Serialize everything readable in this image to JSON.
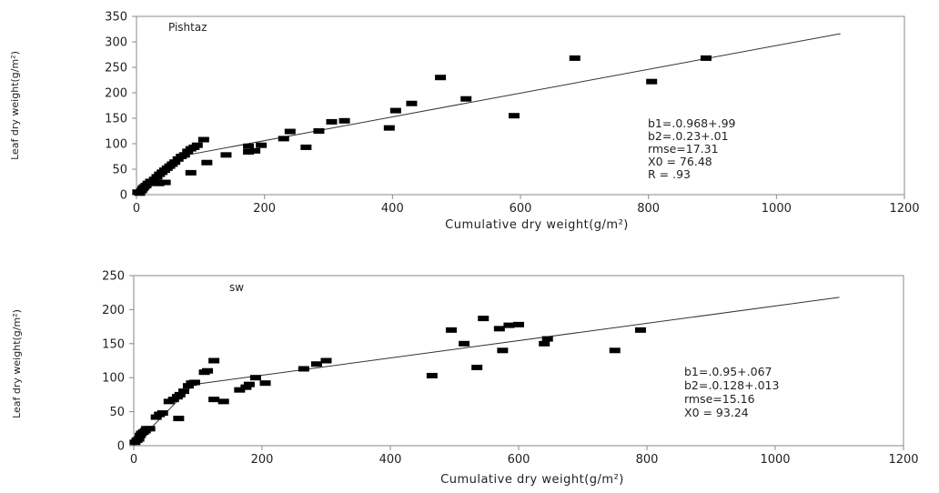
{
  "chart_data": [
    {
      "type": "scatter",
      "title": "Pishtaz",
      "xlabel": "Cumulative dry weight(g/m²)",
      "ylabel": "Leaf dry weight(g/m²)",
      "xlim": [
        0,
        1200
      ],
      "ylim": [
        0,
        350
      ],
      "x_ticks": [
        "0",
        "200",
        "400",
        "600",
        "800",
        "1000",
        "1200"
      ],
      "y_ticks": [
        "0",
        "50",
        "100",
        "150",
        "200",
        "250",
        "300",
        "350"
      ],
      "grid": false,
      "points": [
        [
          2,
          5
        ],
        [
          5,
          3
        ],
        [
          8,
          8
        ],
        [
          10,
          12
        ],
        [
          12,
          15
        ],
        [
          15,
          18
        ],
        [
          18,
          22
        ],
        [
          22,
          26
        ],
        [
          28,
          30
        ],
        [
          32,
          35
        ],
        [
          36,
          40
        ],
        [
          40,
          44
        ],
        [
          44,
          48
        ],
        [
          48,
          52
        ],
        [
          52,
          56
        ],
        [
          56,
          60
        ],
        [
          60,
          64
        ],
        [
          65,
          70
        ],
        [
          70,
          75
        ],
        [
          75,
          78
        ],
        [
          80,
          85
        ],
        [
          85,
          90
        ],
        [
          90,
          93
        ],
        [
          95,
          97
        ],
        [
          105,
          108
        ],
        [
          35,
          22
        ],
        [
          45,
          24
        ],
        [
          85,
          43
        ],
        [
          110,
          63
        ],
        [
          140,
          78
        ],
        [
          175,
          84
        ],
        [
          185,
          86
        ],
        [
          175,
          95
        ],
        [
          195,
          97
        ],
        [
          230,
          110
        ],
        [
          240,
          124
        ],
        [
          265,
          93
        ],
        [
          285,
          125
        ],
        [
          305,
          143
        ],
        [
          325,
          145
        ],
        [
          395,
          131
        ],
        [
          405,
          165
        ],
        [
          430,
          179
        ],
        [
          475,
          230
        ],
        [
          515,
          188
        ],
        [
          590,
          155
        ],
        [
          685,
          268
        ],
        [
          805,
          222
        ],
        [
          890,
          268
        ]
      ],
      "fit_line": [
        [
          0,
          0
        ],
        [
          80,
          78
        ],
        [
          1100,
          316
        ]
      ],
      "annotations": [
        "b1=.0.968+.99",
        "b2=.0.23+.01",
        "rmse=17.31",
        "X0 = 76.48",
        "R = .93"
      ]
    },
    {
      "type": "scatter",
      "title": "sw",
      "xlabel": "Cumulative dry weight(g/m²)",
      "ylabel": "Leaf dry weight(g/m²)",
      "xlim": [
        0,
        1200
      ],
      "ylim": [
        0,
        250
      ],
      "x_ticks": [
        "0",
        "200",
        "400",
        "600",
        "800",
        "1000",
        "1200"
      ],
      "y_ticks": [
        "0",
        "50",
        "100",
        "150",
        "200",
        "250"
      ],
      "grid": false,
      "points": [
        [
          2,
          5
        ],
        [
          5,
          8
        ],
        [
          8,
          10
        ],
        [
          10,
          15
        ],
        [
          12,
          18
        ],
        [
          15,
          20
        ],
        [
          18,
          22
        ],
        [
          20,
          25
        ],
        [
          25,
          25
        ],
        [
          35,
          42
        ],
        [
          40,
          46
        ],
        [
          45,
          48
        ],
        [
          55,
          65
        ],
        [
          62,
          68
        ],
        [
          68,
          72
        ],
        [
          72,
          75
        ],
        [
          78,
          80
        ],
        [
          85,
          88
        ],
        [
          90,
          92
        ],
        [
          95,
          93
        ],
        [
          110,
          108
        ],
        [
          115,
          110
        ],
        [
          125,
          125
        ],
        [
          70,
          40
        ],
        [
          125,
          68
        ],
        [
          140,
          65
        ],
        [
          165,
          82
        ],
        [
          175,
          86
        ],
        [
          180,
          90
        ],
        [
          190,
          100
        ],
        [
          205,
          92
        ],
        [
          265,
          113
        ],
        [
          285,
          120
        ],
        [
          300,
          125
        ],
        [
          465,
          103
        ],
        [
          495,
          170
        ],
        [
          515,
          150
        ],
        [
          535,
          115
        ],
        [
          545,
          187
        ],
        [
          570,
          172
        ],
        [
          575,
          140
        ],
        [
          585,
          177
        ],
        [
          600,
          178
        ],
        [
          640,
          150
        ],
        [
          645,
          157
        ],
        [
          750,
          140
        ],
        [
          790,
          170
        ]
      ],
      "fit_line": [
        [
          0,
          0
        ],
        [
          93,
          90
        ],
        [
          1100,
          218
        ]
      ],
      "annotations": [
        "b1=.0.95+.067",
        "b2=.0.128+.013",
        "rmse=15.16",
        "X0 = 93.24"
      ]
    }
  ]
}
